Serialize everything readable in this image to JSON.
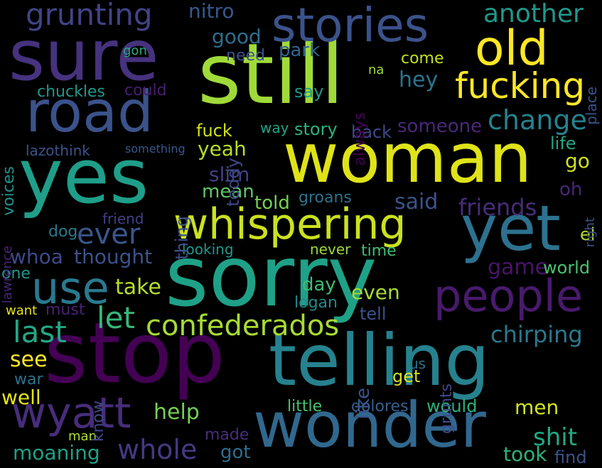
{
  "words": [
    {
      "id": "sorry",
      "text": "sorry",
      "color": "#1fa187"
    },
    {
      "id": "still",
      "text": "still",
      "color": "#a0da39"
    },
    {
      "id": "woman",
      "text": "woman",
      "color": "#dfe318"
    },
    {
      "id": "stop",
      "text": "stop",
      "color": "#440154"
    },
    {
      "id": "telling",
      "text": "telling",
      "color": "#26828e"
    },
    {
      "id": "yes",
      "text": "yes",
      "color": "#1f9e89"
    },
    {
      "id": "sure",
      "text": "sure",
      "color": "#46327e"
    },
    {
      "id": "road",
      "text": "road",
      "color": "#3b528b"
    },
    {
      "id": "wonder",
      "text": "wonder",
      "color": "#31688e"
    },
    {
      "id": "yet",
      "text": "yet",
      "color": "#2c728e"
    },
    {
      "id": "stories",
      "text": "stories",
      "color": "#3b528b"
    },
    {
      "id": "old",
      "text": "old",
      "color": "#fde725"
    },
    {
      "id": "fucking",
      "text": "fucking",
      "color": "#fde725"
    },
    {
      "id": "whispering",
      "text": "whispering",
      "color": "#cae11f"
    },
    {
      "id": "people",
      "text": "people",
      "color": "#481a6c"
    },
    {
      "id": "use",
      "text": "use",
      "color": "#29798e"
    },
    {
      "id": "wyatt",
      "text": "wyatt",
      "color": "#472d7b"
    },
    {
      "id": "confederados",
      "text": "confederados",
      "color": "#a8db34"
    },
    {
      "id": "grunting",
      "text": "grunting",
      "color": "#414487"
    },
    {
      "id": "ever",
      "text": "ever",
      "color": "#39568c"
    },
    {
      "id": "change",
      "text": "change",
      "color": "#26828e"
    },
    {
      "id": "last",
      "text": "last",
      "color": "#22a884"
    },
    {
      "id": "another",
      "text": "another",
      "color": "#1f988b"
    },
    {
      "id": "whole",
      "text": "whole",
      "color": "#443983"
    },
    {
      "id": "chirping",
      "text": "chirping",
      "color": "#2a788e"
    },
    {
      "id": "let",
      "text": "let",
      "color": "#35b779"
    },
    {
      "id": "nitro",
      "text": "nitro",
      "color": "#38588c"
    },
    {
      "id": "good",
      "text": "good",
      "color": "#2e6e8e"
    },
    {
      "id": "park",
      "text": "park",
      "color": "#33638d"
    },
    {
      "id": "need",
      "text": "need",
      "color": "#3b528b"
    },
    {
      "id": "gon",
      "text": "gon",
      "color": "#27ad81"
    },
    {
      "id": "come",
      "text": "come",
      "color": "#c2df23"
    },
    {
      "id": "hey",
      "text": "hey",
      "color": "#2c728e"
    },
    {
      "id": "say",
      "text": "say",
      "color": "#1f9a8a"
    },
    {
      "id": "chuckles",
      "text": "chuckles",
      "color": "#1f988b"
    },
    {
      "id": "could",
      "text": "could",
      "color": "#481f70"
    },
    {
      "id": "story",
      "text": "story",
      "color": "#2db27d"
    },
    {
      "id": "back",
      "text": "back",
      "color": "#3e4989"
    },
    {
      "id": "someone",
      "text": "someone",
      "color": "#482878"
    },
    {
      "id": "fuck",
      "text": "fuck",
      "color": "#d2e21b"
    },
    {
      "id": "way",
      "text": "way",
      "color": "#20a486"
    },
    {
      "id": "yeah",
      "text": "yeah",
      "color": "#b5de2b"
    },
    {
      "id": "lazothink",
      "text": "lazothink",
      "color": "#3b528b"
    },
    {
      "id": "something",
      "text": "something",
      "color": "#38588c"
    },
    {
      "id": "life",
      "text": "life",
      "color": "#22a884"
    },
    {
      "id": "go",
      "text": "go",
      "color": "#cde11d"
    },
    {
      "id": "slim",
      "text": "slim",
      "color": "#424086"
    },
    {
      "id": "mean",
      "text": "mean",
      "color": "#5ec962"
    },
    {
      "id": "oh",
      "text": "oh",
      "color": "#482576"
    },
    {
      "id": "told",
      "text": "told",
      "color": "#75d054"
    },
    {
      "id": "groans",
      "text": "groans",
      "color": "#2c728e"
    },
    {
      "id": "said",
      "text": "said",
      "color": "#3b528b"
    },
    {
      "id": "friends",
      "text": "friends",
      "color": "#472c7a"
    },
    {
      "id": "friend",
      "text": "friend",
      "color": "#424086"
    },
    {
      "id": "dog",
      "text": "dog",
      "color": "#2a788e"
    },
    {
      "id": "looking",
      "text": "looking",
      "color": "#1f988b"
    },
    {
      "id": "never",
      "text": "never",
      "color": "#9bd93c"
    },
    {
      "id": "time",
      "text": "time",
      "color": "#3fbc73"
    },
    {
      "id": "whoa",
      "text": "whoa",
      "color": "#3e4989"
    },
    {
      "id": "thought",
      "text": "thought",
      "color": "#3b528b"
    },
    {
      "id": "game",
      "text": "game",
      "color": "#481467"
    },
    {
      "id": "world",
      "text": "world",
      "color": "#4ac16d"
    },
    {
      "id": "one",
      "text": "one",
      "color": "#1f988b"
    },
    {
      "id": "take",
      "text": "take",
      "color": "#b5de2b"
    },
    {
      "id": "day",
      "text": "day",
      "color": "#3fbc73"
    },
    {
      "id": "even",
      "text": "even",
      "color": "#a8db34"
    },
    {
      "id": "logan",
      "text": "logan",
      "color": "#23898e"
    },
    {
      "id": "must",
      "text": "must",
      "color": "#482173"
    },
    {
      "id": "tell",
      "text": "tell",
      "color": "#3b528b"
    },
    {
      "id": "want",
      "text": "want",
      "color": "#e5e419"
    },
    {
      "id": "see",
      "text": "see",
      "color": "#fde725"
    },
    {
      "id": "get",
      "text": "get",
      "color": "#d8e219"
    },
    {
      "id": "us",
      "text": "us",
      "color": "#2c728e"
    },
    {
      "id": "war",
      "text": "war",
      "color": "#2c728e"
    },
    {
      "id": "well",
      "text": "well",
      "color": "#e5e419"
    },
    {
      "id": "little",
      "text": "little",
      "color": "#4ac16d"
    },
    {
      "id": "dolores",
      "text": "dolores",
      "color": "#35608d"
    },
    {
      "id": "would",
      "text": "would",
      "color": "#2db27d"
    },
    {
      "id": "help",
      "text": "help",
      "color": "#75d054"
    },
    {
      "id": "men",
      "text": "men",
      "color": "#d2e21b"
    },
    {
      "id": "shit",
      "text": "shit",
      "color": "#22a884"
    },
    {
      "id": "man",
      "text": "man",
      "color": "#addc30"
    },
    {
      "id": "made",
      "text": "made",
      "color": "#472d7b"
    },
    {
      "id": "moaning",
      "text": "moaning",
      "color": "#1fa187"
    },
    {
      "id": "got",
      "text": "got",
      "color": "#2e6e8e"
    },
    {
      "id": "took",
      "text": "took",
      "color": "#2db27d"
    },
    {
      "id": "find",
      "text": "find",
      "color": "#3b528b"
    },
    {
      "id": "el",
      "text": "el",
      "color": "#b5de2b"
    },
    {
      "id": "voices",
      "text": "voices",
      "color": "#21918c"
    },
    {
      "id": "lawrence",
      "text": "lawrence",
      "color": "#482576"
    },
    {
      "id": "teddy",
      "text": "teddy",
      "color": "#3e4989"
    },
    {
      "id": "thing",
      "text": "thing",
      "color": "#3b528b"
    },
    {
      "id": "always",
      "text": "always",
      "color": "#440154"
    },
    {
      "id": "na",
      "text": "na",
      "color": "#a0da39"
    },
    {
      "id": "place",
      "text": "place",
      "color": "#3b528b"
    },
    {
      "id": "right",
      "text": "right",
      "color": "#3b528b"
    },
    {
      "id": "grunts",
      "text": "grunts",
      "color": "#3e4989"
    },
    {
      "id": "like",
      "text": "like",
      "color": "#3b528b"
    },
    {
      "id": "know",
      "text": "know",
      "color": "#3e4989"
    }
  ]
}
